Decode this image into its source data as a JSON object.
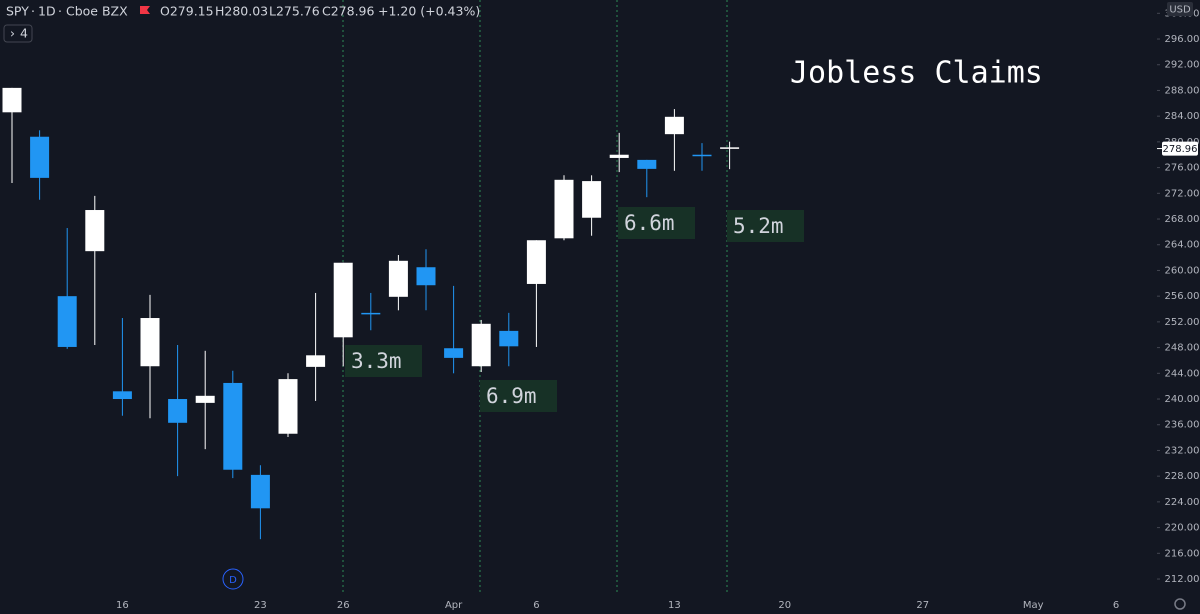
{
  "chart_data": {
    "type": "candlestick",
    "title": "Jobless Claims",
    "header": {
      "symbol": "SPY",
      "interval": "1D",
      "exchange": "Cboe BZX",
      "open": "O279.15",
      "high": "H280.03",
      "low": "L275.76",
      "close": "C278.96",
      "change": "+1.20 (+0.43%)",
      "indicators": "4",
      "currency": "USD",
      "dividend_marker": "D"
    },
    "categories": [
      null,
      null,
      null,
      null,
      "16",
      null,
      null,
      null,
      null,
      "23",
      null,
      null,
      "26",
      null,
      null,
      null,
      "Apr",
      null,
      null,
      "6",
      null,
      null,
      null,
      null,
      "13",
      null,
      null,
      null,
      "20",
      null,
      null,
      null,
      null,
      "27",
      null,
      null,
      null,
      "May",
      null,
      null,
      "6"
    ],
    "open": [
      284.6,
      280.8,
      256.0,
      263.0,
      241.2,
      245.1,
      240.0,
      239.4,
      242.5,
      228.2,
      234.6,
      245.0,
      249.6,
      253.4,
      255.9,
      260.5,
      247.9,
      245.1,
      250.6,
      257.9,
      265.0,
      268.2,
      277.5,
      277.2,
      281.2,
      278.0,
      279.15,
      null,
      null,
      null,
      null,
      null,
      null,
      null,
      null,
      null,
      null,
      null,
      null,
      null,
      null
    ],
    "high": [
      288.4,
      281.8,
      266.6,
      271.6,
      252.6,
      256.2,
      248.4,
      247.5,
      244.4,
      229.7,
      244.0,
      256.5,
      261.2,
      256.5,
      262.4,
      263.3,
      257.6,
      252.3,
      253.4,
      264.7,
      274.8,
      274.8,
      281.4,
      277.2,
      285.1,
      279.8,
      280.03,
      null,
      null,
      null,
      null,
      null,
      null,
      null,
      null,
      null,
      null,
      null,
      null,
      null,
      null
    ],
    "low": [
      273.6,
      271.0,
      247.8,
      248.4,
      237.4,
      237.0,
      228.0,
      232.2,
      227.7,
      218.2,
      234.1,
      239.7,
      245.1,
      250.7,
      253.8,
      253.8,
      244.0,
      244.2,
      245.1,
      248.1,
      264.7,
      265.4,
      275.3,
      271.4,
      275.5,
      275.5,
      275.76,
      null,
      null,
      null,
      null,
      null,
      null,
      null,
      null,
      null,
      null,
      null,
      null,
      null,
      null
    ],
    "close": [
      288.4,
      274.4,
      248.1,
      269.4,
      240.0,
      252.6,
      236.3,
      240.5,
      229.0,
      223.0,
      243.1,
      246.8,
      261.2,
      253.2,
      261.5,
      257.7,
      246.4,
      251.7,
      248.2,
      264.7,
      274.1,
      273.9,
      278.0,
      275.8,
      283.9,
      277.8,
      278.96,
      null,
      null,
      null,
      null,
      null,
      null,
      null,
      null,
      null,
      null,
      null,
      null,
      null,
      null
    ],
    "colors": [
      "#ffffff",
      "#2196f3",
      "#2196f3",
      "#ffffff",
      "#2196f3",
      "#ffffff",
      "#2196f3",
      "#ffffff",
      "#2196f3",
      "#2196f3",
      "#ffffff",
      "#ffffff",
      "#ffffff",
      "#2196f3",
      "#ffffff",
      "#2196f3",
      "#2196f3",
      "#ffffff",
      "#2196f3",
      "#ffffff",
      "#ffffff",
      "#ffffff",
      "#ffffff",
      "#2196f3",
      "#ffffff",
      "#2196f3",
      "#ffffff",
      null,
      null,
      null,
      null,
      null,
      null,
      null,
      null,
      null,
      null,
      null,
      null,
      null,
      null
    ],
    "last_price": 278.96,
    "annotations": [
      "3.3m",
      "6.9m",
      "6.6m",
      "5.2m"
    ],
    "ylim": [
      209.67,
      302.07
    ],
    "yticks": [
      {
        "value": 212,
        "label": "212.00"
      },
      {
        "value": 216,
        "label": "216.00"
      },
      {
        "value": 220,
        "label": "220.00"
      },
      {
        "value": 224,
        "label": "224.00"
      },
      {
        "value": 228,
        "label": "228.00"
      },
      {
        "value": 232,
        "label": "232.00"
      },
      {
        "value": 236,
        "label": "236.00"
      },
      {
        "value": 240,
        "label": "240.00"
      },
      {
        "value": 244,
        "label": "244.00"
      },
      {
        "value": 248,
        "label": "248.00"
      },
      {
        "value": 252,
        "label": "252.00"
      },
      {
        "value": 256,
        "label": "256.00"
      },
      {
        "value": 260,
        "label": "260.00"
      },
      {
        "value": 264,
        "label": "264.00"
      },
      {
        "value": 268,
        "label": "268.00"
      },
      {
        "value": 272,
        "label": "272.00"
      },
      {
        "value": 276,
        "label": "276.00"
      },
      {
        "value": 280,
        "label": "280.00"
      },
      {
        "value": 284,
        "label": "284.00"
      },
      {
        "value": 288,
        "label": "288.00"
      },
      {
        "value": 292,
        "label": "292.00"
      },
      {
        "value": 296,
        "label": "296.00"
      },
      {
        "value": 300,
        "label": "300.00"
      }
    ],
    "grid": false
  }
}
